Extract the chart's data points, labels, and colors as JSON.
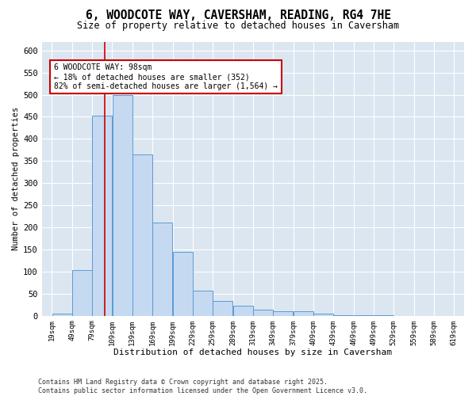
{
  "title_line1": "6, WOODCOTE WAY, CAVERSHAM, READING, RG4 7HE",
  "title_line2": "Size of property relative to detached houses in Caversham",
  "xlabel": "Distribution of detached houses by size in Caversham",
  "ylabel": "Number of detached properties",
  "bar_edges": [
    19,
    49,
    79,
    109,
    139,
    169,
    199,
    229,
    259,
    289,
    319,
    349,
    379,
    409,
    439,
    469,
    499,
    529,
    559,
    589,
    619
  ],
  "bar_heights": [
    5,
    104,
    453,
    500,
    365,
    210,
    144,
    57,
    33,
    22,
    13,
    10,
    10,
    4,
    2,
    1,
    1,
    0,
    0,
    0
  ],
  "bar_color": "#c5d9f0",
  "bar_edgecolor": "#5b9bd5",
  "vline_x": 98,
  "vline_color": "#cc0000",
  "annotation_text": "6 WOODCOTE WAY: 98sqm\n← 18% of detached houses are smaller (352)\n82% of semi-detached houses are larger (1,564) →",
  "annotation_box_color": "#ffffff",
  "annotation_box_edgecolor": "#cc0000",
  "ylim": [
    0,
    620
  ],
  "yticks": [
    0,
    50,
    100,
    150,
    200,
    250,
    300,
    350,
    400,
    450,
    500,
    550,
    600
  ],
  "bg_color": "#dce6f1",
  "grid_color": "#ffffff",
  "fig_bg_color": "#ffffff",
  "footer_line1": "Contains HM Land Registry data © Crown copyright and database right 2025.",
  "footer_line2": "Contains public sector information licensed under the Open Government Licence v3.0."
}
